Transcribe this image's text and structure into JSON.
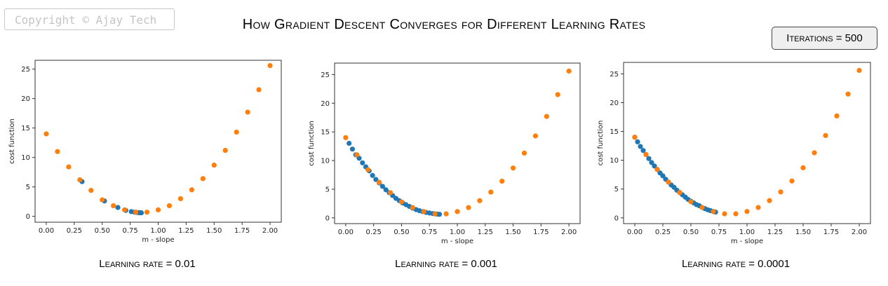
{
  "copyright": "Copyright © Ajay Tech",
  "title": "How Gradient Descent Converges for Different Learning Rates",
  "iterations_label": "Iterations = 500",
  "colors": {
    "path": "#1f77b4",
    "curve": "#ff7f0e"
  },
  "chart_data": [
    {
      "type": "scatter",
      "caption": "Learning rate = 0.01",
      "xlabel": "m - slope",
      "ylabel": "cost function",
      "xlim": [
        -0.1,
        2.1
      ],
      "ylim": [
        -1,
        26.5
      ],
      "xticks": [
        0.0,
        0.25,
        0.5,
        0.75,
        1.0,
        1.25,
        1.5,
        1.75,
        2.0
      ],
      "xtick_labels": [
        "0.00",
        "0.25",
        "0.50",
        "0.75",
        "1.00",
        "1.25",
        "1.50",
        "1.75",
        "2.00"
      ],
      "yticks": [
        0,
        5,
        10,
        15,
        20,
        25
      ],
      "ytick_labels": [
        "0",
        "5",
        "10",
        "15",
        "20",
        "25"
      ],
      "series": [
        {
          "color": "#1f77b4",
          "x": [
            0.32,
            0.52,
            0.64,
            0.71,
            0.76,
            0.79,
            0.81,
            0.83,
            0.84,
            0.85
          ],
          "y": [
            5.9,
            2.6,
            1.5,
            1.0,
            0.8,
            0.7,
            0.65,
            0.62,
            0.6,
            0.6
          ]
        },
        {
          "color": "#ff7f0e",
          "x": [
            0.0,
            0.1,
            0.2,
            0.3,
            0.4,
            0.5,
            0.6,
            0.7,
            0.8,
            0.9,
            1.0,
            1.1,
            1.2,
            1.3,
            1.4,
            1.5,
            1.6,
            1.7,
            1.8,
            1.9,
            2.0
          ],
          "y": [
            14.0,
            11.0,
            8.4,
            6.2,
            4.4,
            2.8,
            1.8,
            1.1,
            0.7,
            0.7,
            1.1,
            1.8,
            3.0,
            4.5,
            6.4,
            8.7,
            11.2,
            14.3,
            17.7,
            21.5,
            25.6
          ]
        }
      ]
    },
    {
      "type": "scatter",
      "caption": "Learning rate = 0.001",
      "xlabel": "m - slope",
      "ylabel": "cost function",
      "xlim": [
        -0.1,
        2.1
      ],
      "ylim": [
        -1,
        27
      ],
      "xticks": [
        0.0,
        0.25,
        0.5,
        0.75,
        1.0,
        1.25,
        1.5,
        1.75,
        2.0
      ],
      "xtick_labels": [
        "0.00",
        "0.25",
        "0.50",
        "0.75",
        "1.00",
        "1.25",
        "1.50",
        "1.75",
        "2.00"
      ],
      "yticks": [
        0,
        5,
        10,
        15,
        20,
        25
      ],
      "ytick_labels": [
        "0",
        "5",
        "10",
        "15",
        "20",
        "25"
      ],
      "series": [
        {
          "color": "#1f77b4",
          "x": [
            0.03,
            0.06,
            0.09,
            0.12,
            0.15,
            0.18,
            0.21,
            0.24,
            0.27,
            0.3,
            0.33,
            0.36,
            0.39,
            0.42,
            0.45,
            0.48,
            0.51,
            0.54,
            0.57,
            0.6,
            0.63,
            0.66,
            0.69,
            0.72,
            0.75,
            0.78,
            0.8,
            0.82,
            0.84
          ],
          "y": [
            13.0,
            12.0,
            11.0,
            10.4,
            9.6,
            8.9,
            8.2,
            7.4,
            6.7,
            6.1,
            5.5,
            4.9,
            4.4,
            3.9,
            3.4,
            3.0,
            2.6,
            2.3,
            2.0,
            1.7,
            1.45,
            1.25,
            1.1,
            0.95,
            0.85,
            0.75,
            0.7,
            0.66,
            0.62
          ]
        },
        {
          "color": "#ff7f0e",
          "x": [
            0.0,
            0.1,
            0.2,
            0.3,
            0.4,
            0.5,
            0.6,
            0.7,
            0.8,
            0.9,
            1.0,
            1.1,
            1.2,
            1.3,
            1.4,
            1.5,
            1.6,
            1.7,
            1.8,
            1.9,
            2.0
          ],
          "y": [
            14.0,
            11.0,
            8.4,
            6.2,
            4.4,
            2.8,
            1.8,
            1.1,
            0.7,
            0.7,
            1.1,
            1.8,
            3.0,
            4.5,
            6.4,
            8.7,
            11.3,
            14.3,
            17.7,
            21.5,
            25.6
          ]
        }
      ]
    },
    {
      "type": "scatter",
      "caption": "Learning rate = 0.0001",
      "xlabel": "m - slope",
      "ylabel": "cost function",
      "xlim": [
        -0.1,
        2.1
      ],
      "ylim": [
        -1,
        27
      ],
      "xticks": [
        0.0,
        0.25,
        0.5,
        0.75,
        1.0,
        1.25,
        1.5,
        1.75,
        2.0
      ],
      "xtick_labels": [
        "0.00",
        "0.25",
        "0.50",
        "0.75",
        "1.00",
        "1.25",
        "1.50",
        "1.75",
        "2.00"
      ],
      "yticks": [
        0,
        5,
        10,
        15,
        20,
        25
      ],
      "ytick_labels": [
        "0",
        "5",
        "10",
        "15",
        "20",
        "25"
      ],
      "series": [
        {
          "color": "#1f77b4",
          "x": [
            0.0,
            0.025,
            0.05,
            0.075,
            0.1,
            0.125,
            0.15,
            0.175,
            0.2,
            0.225,
            0.25,
            0.275,
            0.3,
            0.325,
            0.35,
            0.375,
            0.4,
            0.425,
            0.45,
            0.475,
            0.5,
            0.525,
            0.55,
            0.575,
            0.6,
            0.625,
            0.65,
            0.675,
            0.7,
            0.72
          ],
          "y": [
            14.0,
            13.2,
            12.4,
            11.7,
            11.0,
            10.3,
            9.6,
            9.0,
            8.4,
            7.8,
            7.3,
            6.7,
            6.2,
            5.7,
            5.3,
            4.8,
            4.4,
            4.0,
            3.6,
            3.2,
            2.9,
            2.6,
            2.3,
            2.1,
            1.8,
            1.6,
            1.4,
            1.25,
            1.1,
            1.0
          ]
        },
        {
          "color": "#ff7f0e",
          "x": [
            0.0,
            0.1,
            0.2,
            0.3,
            0.4,
            0.5,
            0.6,
            0.7,
            0.8,
            0.9,
            1.0,
            1.1,
            1.2,
            1.3,
            1.4,
            1.5,
            1.6,
            1.7,
            1.8,
            1.9,
            2.0
          ],
          "y": [
            14.0,
            11.0,
            8.4,
            6.2,
            4.4,
            2.8,
            1.8,
            1.1,
            0.7,
            0.7,
            1.1,
            1.8,
            3.0,
            4.5,
            6.4,
            8.7,
            11.3,
            14.3,
            17.7,
            21.5,
            25.6
          ]
        }
      ]
    }
  ]
}
